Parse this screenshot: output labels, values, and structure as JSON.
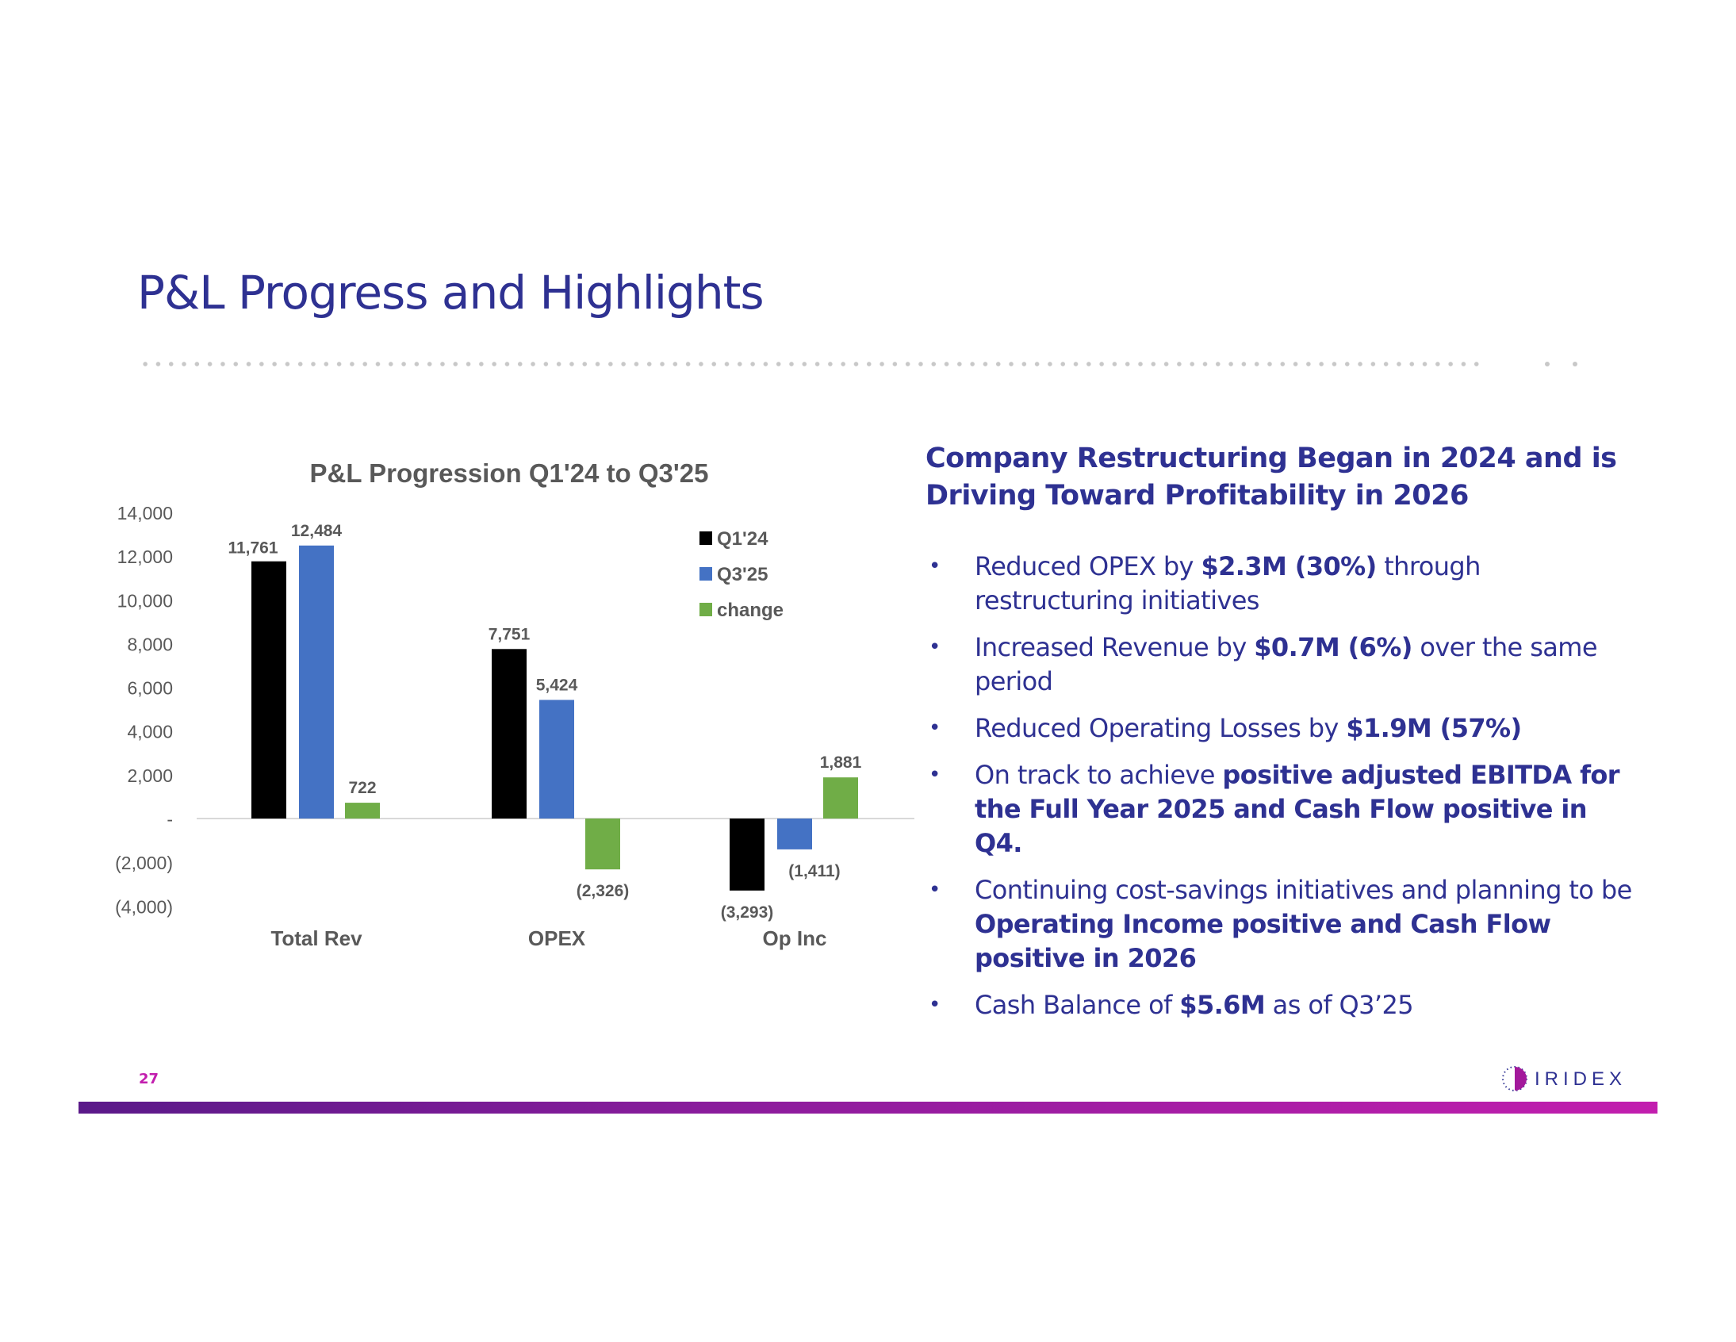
{
  "title": "P&L Progress and Highlights",
  "right": {
    "heading_line1": "Company Restructuring Began in 2024 and is",
    "heading_line2": "Driving Toward Profitability in 2026",
    "bullets": [
      {
        "parts": [
          {
            "t": "Reduced OPEX by ",
            "b": false
          },
          {
            "t": "$2.3M (30%)",
            "b": true
          },
          {
            "t": " through restructuring initiatives",
            "b": false
          }
        ]
      },
      {
        "parts": [
          {
            "t": "Increased Revenue by ",
            "b": false
          },
          {
            "t": "$0.7M (6%)",
            "b": true
          },
          {
            "t": " over the same period",
            "b": false
          }
        ]
      },
      {
        "parts": [
          {
            "t": "Reduced Operating Losses by ",
            "b": false
          },
          {
            "t": "$1.9M (57%)",
            "b": true
          }
        ]
      },
      {
        "parts": [
          {
            "t": "On track to achieve ",
            "b": false
          },
          {
            "t": "positive adjusted EBITDA for the Full Year 2025 and Cash Flow positive in Q4.",
            "b": true
          }
        ]
      },
      {
        "parts": [
          {
            "t": "Continuing cost-savings initiatives and planning to be ",
            "b": false
          },
          {
            "t": "Operating Income positive and Cash Flow positive in 2026",
            "b": true
          }
        ]
      },
      {
        "parts": [
          {
            "t": "Cash Balance of ",
            "b": false
          },
          {
            "t": "$5.6M",
            "b": true
          },
          {
            "t": " as of Q3’25",
            "b": false
          }
        ]
      }
    ],
    "bullet_char": "•"
  },
  "page_number": "27",
  "logo_text": "IRIDEX",
  "colors": {
    "title": "#2e3192",
    "q1": "#000000",
    "q3": "#4472c4",
    "change": "#70ad47",
    "accent": "#c21eae"
  },
  "chart_data": {
    "type": "bar",
    "title": "P&L Progression Q1'24 to Q3'25",
    "categories": [
      "Total Rev",
      "OPEX",
      "Op Inc"
    ],
    "series": [
      {
        "name": "Q1'24",
        "values": [
          11761,
          7751,
          -3293
        ],
        "labels": [
          "11,761",
          "7,751",
          "(3,293)"
        ]
      },
      {
        "name": "Q3'25",
        "values": [
          12484,
          5424,
          -1411
        ],
        "labels": [
          "12,484",
          "5,424",
          "(1,411)"
        ]
      },
      {
        "name": "change",
        "values": [
          722,
          -2326,
          1881
        ],
        "labels": [
          "722",
          "(2,326)",
          "1,881"
        ]
      }
    ],
    "yticks": [
      14000,
      12000,
      10000,
      8000,
      6000,
      4000,
      2000,
      0,
      -2000,
      -4000
    ],
    "ytick_labels": [
      "14,000",
      "12,000",
      "10,000",
      "8,000",
      "6,000",
      "4,000",
      "2,000",
      "-",
      "(2,000)",
      "(4,000)"
    ],
    "ylim": [
      -4000,
      14000
    ],
    "legend": "top-right",
    "grid": false
  }
}
